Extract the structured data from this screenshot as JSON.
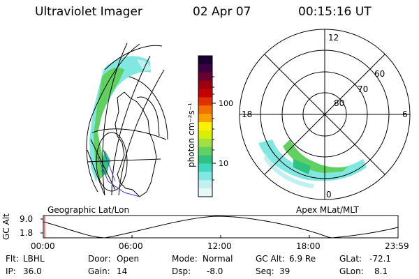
{
  "header": {
    "instrument": "Ultraviolet Imager",
    "date": "02 Apr 07",
    "time": "00:15:16 UT"
  },
  "colorbar": {
    "unit_label": "photon cm⁻²s⁻¹",
    "ticks": [
      "100",
      "10"
    ],
    "colors": [
      "#1a0030",
      "#3a0040",
      "#6a0030",
      "#9a0010",
      "#c40000",
      "#e03000",
      "#f07000",
      "#f8a000",
      "#fff000",
      "#d8f000",
      "#a0e040",
      "#60d060",
      "#30c080",
      "#40d8c0",
      "#80e8e0",
      "#c0f0f0",
      "#e8f8f8"
    ]
  },
  "panels": {
    "geo_label": "Geographic Lat/Lon",
    "polar_label": "Apex MLat/MLT",
    "polar_hours": {
      "top": "12",
      "left": "18",
      "right": "6",
      "bottom": "0"
    },
    "polar_lats": [
      "60",
      "70",
      "80"
    ]
  },
  "altitude_plot": {
    "axis_label": "GC Alt",
    "y_ticks": [
      "9.0",
      "1.8"
    ],
    "x_ticks": [
      "00:00",
      "06:00",
      "12:00",
      "18:00",
      "23:59"
    ]
  },
  "info": {
    "filter_label": "Flt:",
    "filter_value": "LBHL",
    "ip_label": "IP:",
    "ip_value": "36.0",
    "door_label": "Door:",
    "door_value": "Open",
    "gain_label": "Gain:",
    "gain_value": "14",
    "mode_label": "Mode:",
    "mode_value": "Normal",
    "dsp_label": "Dsp:",
    "dsp_value": "-8.0",
    "gcalt_label": "GC Alt:",
    "gcalt_value": "6.9 Re",
    "seq_label": "Seq:",
    "seq_value": "39",
    "glat_label": "GLat:",
    "glat_value": "-72.1",
    "glon_label": "GLon:",
    "glon_value": "8.1"
  }
}
